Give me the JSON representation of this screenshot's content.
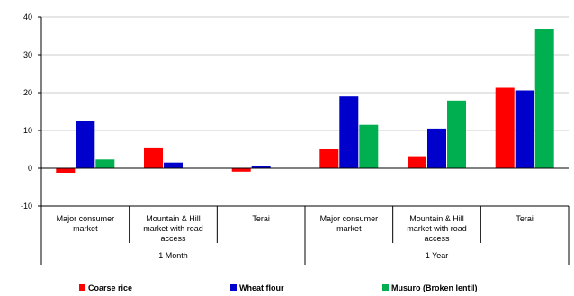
{
  "chart_data": {
    "type": "bar",
    "title": "",
    "xlabel": "",
    "ylabel": "",
    "ylim": [
      -10,
      40
    ],
    "yticks": [
      -10,
      0,
      10,
      20,
      30,
      40
    ],
    "grid": true,
    "legend_position": "bottom",
    "categories": [
      [
        "Major consumer",
        "market"
      ],
      [
        "Mountain & Hill",
        "market with road",
        "access"
      ],
      [
        "Terai"
      ],
      [
        "Major consumer",
        "market"
      ],
      [
        "Mountain & Hill",
        "market with road",
        "access"
      ],
      [
        "Terai"
      ]
    ],
    "groups": [
      {
        "label": "1 Month",
        "span": [
          0,
          2
        ]
      },
      {
        "label": "1 Year",
        "span": [
          3,
          5
        ]
      }
    ],
    "series": [
      {
        "name": "Coarse rice",
        "color": "#ff0000",
        "values": [
          -1.2,
          5.5,
          -0.9,
          5.0,
          3.2,
          21.3
        ]
      },
      {
        "name": "Wheat flour",
        "color": "#0000cc",
        "values": [
          12.6,
          1.5,
          0.5,
          19.0,
          10.5,
          20.6
        ]
      },
      {
        "name": "Musuro (Broken lentil)",
        "color": "#00b050",
        "values": [
          2.3,
          0.0,
          0.0,
          11.5,
          17.9,
          36.9
        ]
      }
    ]
  }
}
